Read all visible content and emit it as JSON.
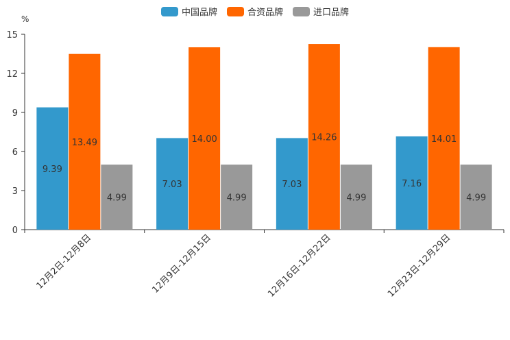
{
  "chart_data": {
    "type": "bar",
    "unit": "%",
    "categories": [
      "12月2日-12月8日",
      "12月9日-12月15日",
      "12月16日-12月22日",
      "12月23日-12月29日"
    ],
    "series": [
      {
        "name": "中国品牌",
        "color": "#3399cc",
        "values": [
          9.39,
          7.03,
          7.03,
          7.16
        ],
        "labels": [
          "9.39",
          "7.03",
          "7.03",
          "7.16"
        ]
      },
      {
        "name": "合资品牌",
        "color": "#ff6600",
        "values": [
          13.49,
          14.0,
          14.26,
          14.01
        ],
        "labels": [
          "13.49",
          "14.00",
          "14.26",
          "14.01"
        ]
      },
      {
        "name": "进口品牌",
        "color": "#999999",
        "values": [
          4.99,
          4.99,
          4.99,
          4.99
        ],
        "labels": [
          "4.99",
          "4.99",
          "4.99",
          "4.99"
        ]
      }
    ],
    "yticks": [
      "0",
      "3",
      "6",
      "9",
      "12",
      "15"
    ],
    "ylim": [
      0,
      15
    ],
    "legend_position": "top-center",
    "grid": false
  }
}
